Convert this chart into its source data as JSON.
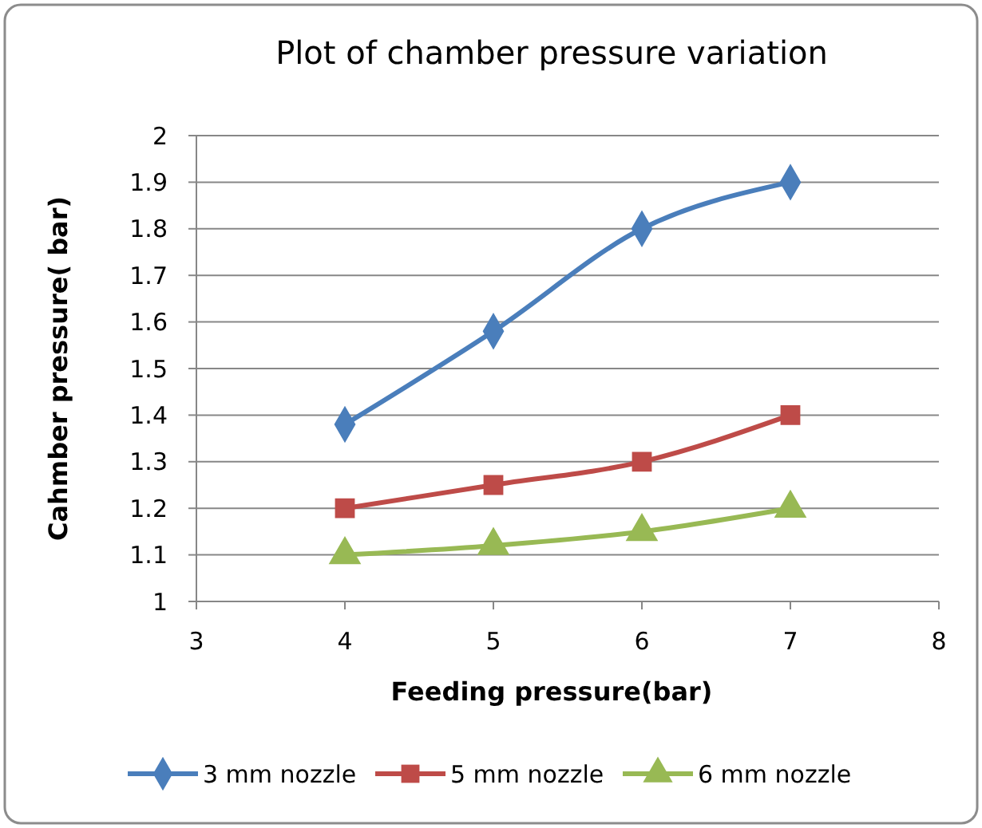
{
  "chart_data": {
    "type": "line",
    "title": "Plot of chamber pressure variation",
    "xlabel": "Feeding pressure(bar)",
    "ylabel": "Cahmber pressure( bar)",
    "x": [
      4,
      5,
      6,
      7
    ],
    "series": [
      {
        "name": "3 mm nozzle",
        "color": "#4a7ebb",
        "marker": "diamond",
        "values": [
          1.38,
          1.58,
          1.8,
          1.9
        ]
      },
      {
        "name": "5 mm nozzle",
        "color": "#be4b48",
        "marker": "square",
        "values": [
          1.2,
          1.25,
          1.3,
          1.4
        ]
      },
      {
        "name": "6 mm nozzle",
        "color": "#98b954",
        "marker": "triangle",
        "values": [
          1.1,
          1.12,
          1.15,
          1.2
        ]
      }
    ],
    "xlim": [
      3,
      8
    ],
    "xticks": [
      3,
      4,
      5,
      6,
      7,
      8
    ],
    "ylim": [
      1,
      2
    ],
    "yticks": [
      1,
      1.1,
      1.2,
      1.3,
      1.4,
      1.5,
      1.6,
      1.7,
      1.8,
      1.9,
      2
    ],
    "grid": "y",
    "legend": "bottom",
    "line_style": "solid"
  }
}
